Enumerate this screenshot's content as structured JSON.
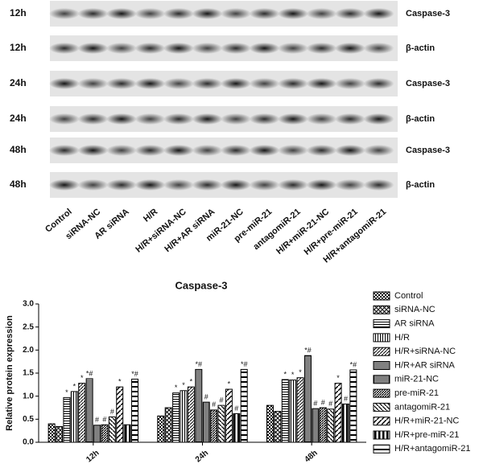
{
  "blot": {
    "rows": [
      {
        "time": "12h",
        "protein": "Caspase-3"
      },
      {
        "time": "12h",
        "protein": "β-actin"
      },
      {
        "time": "24h",
        "protein": "Caspase-3"
      },
      {
        "time": "24h",
        "protein": "β-actin"
      },
      {
        "time": "48h",
        "protein": "Caspase-3"
      },
      {
        "time": "48h",
        "protein": "β-actin"
      }
    ],
    "lanes": [
      "Control",
      "siRNA-NC",
      "AR siRNA",
      "H/R",
      "H/R+siRNA-NC",
      "H/R+AR siRNA",
      "miR-21-NC",
      "pre-miR-21",
      "antagomiR-21",
      "H/R+miR-21-NC",
      "H/R+pre-miR-21",
      "H/R+antagomiR-21"
    ]
  },
  "chart_data": {
    "type": "bar",
    "title": "Caspase-3",
    "y_label": "Relative protein expression",
    "categories": [
      "12h",
      "24h",
      "48h"
    ],
    "ylim": [
      0,
      3
    ],
    "yticks": [
      {
        "value": 0,
        "label": "0.0"
      },
      {
        "value": 0.5,
        "label": "0.5"
      },
      {
        "value": 1,
        "label": "1.0"
      },
      {
        "value": 1.5,
        "label": "1.5"
      },
      {
        "value": 2,
        "label": "2.0"
      },
      {
        "value": 2.5,
        "label": "2.5"
      },
      {
        "value": 3,
        "label": "3.0"
      }
    ],
    "series": [
      {
        "name": "Control",
        "color": "#000000",
        "pattern": "checker",
        "values": [
          0.4,
          0.57,
          0.8
        ],
        "labels": [
          null,
          null,
          null
        ]
      },
      {
        "name": "siRNA-NC",
        "color": "#000000",
        "pattern": "cross",
        "values": [
          0.34,
          0.75,
          0.67
        ],
        "labels": [
          null,
          null,
          null
        ]
      },
      {
        "name": "AR siRNA",
        "color": "#000000",
        "pattern": "hlines",
        "values": [
          0.97,
          1.07,
          1.36
        ],
        "labels": [
          "*",
          "*",
          "*"
        ]
      },
      {
        "name": "H/R",
        "color": "#000000",
        "pattern": "vlines",
        "values": [
          1.1,
          1.12,
          1.35
        ],
        "labels": [
          "*",
          "*",
          "*"
        ]
      },
      {
        "name": "H/R+siRNA-NC",
        "color": "#000000",
        "pattern": "diag",
        "values": [
          1.28,
          1.2,
          1.4
        ],
        "labels": [
          "*",
          "*",
          "*"
        ]
      },
      {
        "name": "H/R+AR siRNA",
        "color": "#000000",
        "pattern": "dense",
        "values": [
          1.38,
          1.58,
          1.88
        ],
        "labels": [
          "*#",
          "*#",
          "*#"
        ]
      },
      {
        "name": "miR-21-NC",
        "color": "#000000",
        "pattern": "vdense",
        "values": [
          0.37,
          0.87,
          0.73
        ],
        "labels": [
          "#",
          "#",
          "#"
        ]
      },
      {
        "name": "pre-miR-21",
        "color": "#000000",
        "pattern": "diag2",
        "values": [
          0.38,
          0.7,
          0.75
        ],
        "labels": [
          "#",
          "#",
          "#"
        ]
      },
      {
        "name": "antagomiR-21",
        "color": "#000000",
        "pattern": "backdiag",
        "values": [
          0.55,
          0.8,
          0.72
        ],
        "labels": [
          "#",
          "#",
          "#"
        ]
      },
      {
        "name": "H/R+miR-21-NC",
        "color": "#000000",
        "pattern": "diagwide",
        "values": [
          1.2,
          1.15,
          1.28
        ],
        "labels": [
          "*",
          "*",
          "*"
        ]
      },
      {
        "name": "H/R+pre-miR-21",
        "color": "#000000",
        "pattern": "vstripes",
        "values": [
          0.38,
          0.62,
          0.83
        ],
        "labels": [
          null,
          "#",
          "#"
        ]
      },
      {
        "name": "H/R+antagomiR-21",
        "color": "#000000",
        "pattern": "hwide",
        "values": [
          1.37,
          1.58,
          1.57
        ],
        "labels": [
          "*#",
          "*#",
          "*#"
        ]
      }
    ]
  }
}
